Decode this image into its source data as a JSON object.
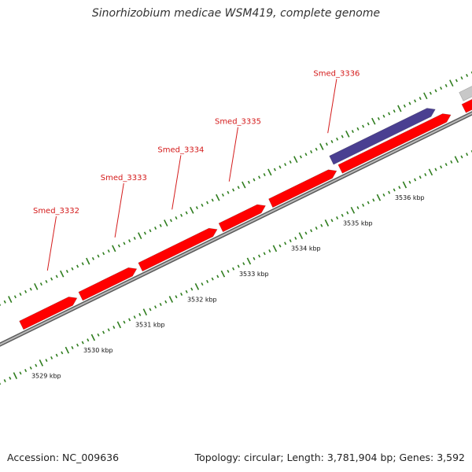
{
  "title": "Sinorhizobium medicae WSM419, complete genome",
  "footer": {
    "accession": "Accession: NC_009636",
    "summary": "Topology: circular; Length: 3,781,904 bp; Genes: 3,592"
  },
  "colors": {
    "forward_gene": "#ff0000",
    "reverse_gene": "#4a3f91",
    "other_gene": "#c8c8c8",
    "backbone": "#8a8a8a",
    "ticks": "#2f7d1e",
    "gene_label": "#d41a1a"
  },
  "scale_labels": [
    {
      "kbp": 3529,
      "text": "3529 kbp"
    },
    {
      "kbp": 3530,
      "text": "3530 kbp"
    },
    {
      "kbp": 3531,
      "text": "3531 kbp"
    },
    {
      "kbp": 3532,
      "text": "3532 kbp"
    },
    {
      "kbp": 3533,
      "text": "3533 kbp"
    },
    {
      "kbp": 3534,
      "text": "3534 kbp"
    },
    {
      "kbp": 3535,
      "text": "3535 kbp"
    },
    {
      "kbp": 3536,
      "text": "3536 kbp"
    }
  ],
  "genes": [
    {
      "strand": "forward",
      "start_kbp": 3528.98,
      "end_kbp": 3530.05
    },
    {
      "strand": "forward",
      "start_kbp": 3530.12,
      "end_kbp": 3531.2
    },
    {
      "strand": "forward",
      "start_kbp": 3531.27,
      "end_kbp": 3532.75
    },
    {
      "strand": "forward",
      "start_kbp": 3532.82,
      "end_kbp": 3533.68
    },
    {
      "strand": "forward",
      "start_kbp": 3533.78,
      "end_kbp": 3535.05
    },
    {
      "strand": "forward",
      "start_kbp": 3535.12,
      "end_kbp": 3537.25
    },
    {
      "strand": "forward",
      "start_kbp": 3537.5,
      "end_kbp": 3538.5
    },
    {
      "strand": "reverse",
      "start_kbp": 3535.05,
      "end_kbp": 3537.05
    },
    {
      "strand": "other",
      "start_kbp": 3537.55,
      "end_kbp": 3538.5
    }
  ],
  "gene_labels": [
    {
      "text": "Smed_3332",
      "kbp": 3529.8
    },
    {
      "text": "Smed_3333",
      "kbp": 3531.1
    },
    {
      "text": "Smed_3334",
      "kbp": 3532.2
    },
    {
      "text": "Smed_3335",
      "kbp": 3533.3
    },
    {
      "text": "Smed_3336",
      "kbp": 3535.2
    }
  ]
}
